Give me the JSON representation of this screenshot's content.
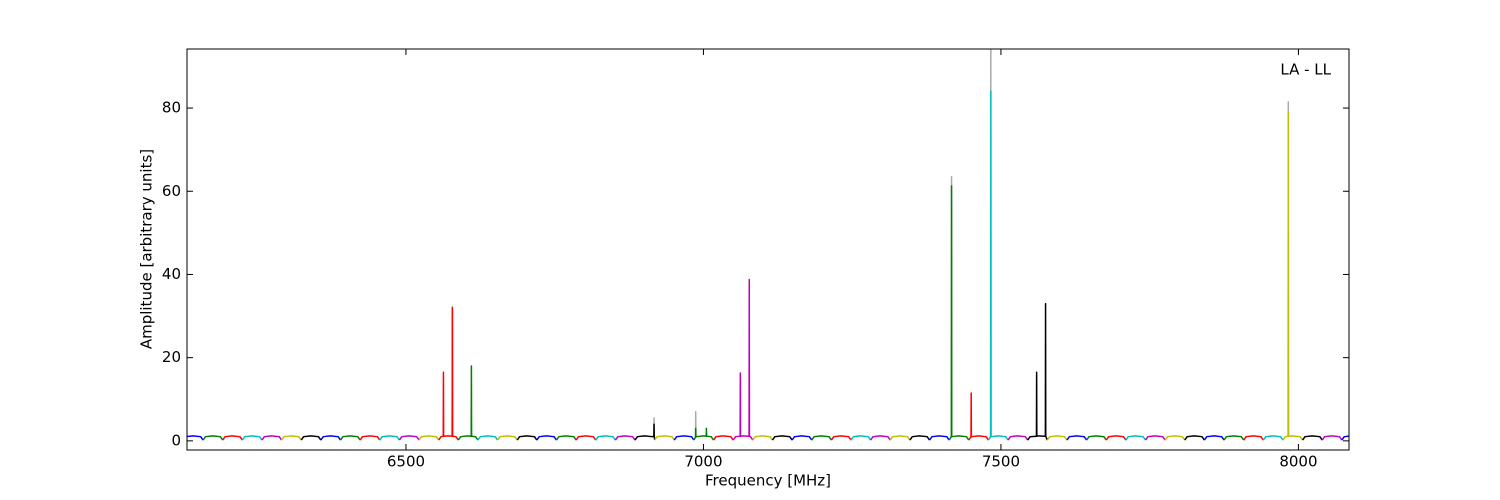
{
  "chart_data": {
    "type": "line",
    "annotation": "LA - LL",
    "x_label": "Frequency [MHz]",
    "y_label": "Amplitude [arbitrary units]",
    "xlim": [
      6132,
      8085
    ],
    "xticks": [
      6500,
      7000,
      7500,
      8000
    ],
    "ylim": [
      -2.2,
      94.2
    ],
    "yticks": [
      0,
      20,
      40,
      60,
      80
    ],
    "series": [
      {
        "color": "#aaaaaa",
        "x": [
          6577.7,
          6578,
          6578.3,
          null,
          6916.7,
          6917,
          6917.3,
          null,
          6986.7,
          6987,
          6987.3,
          null,
          7416.7,
          7417,
          7417.3,
          null,
          7482.7,
          7483,
          7483.3,
          null,
          7982.7,
          7983,
          7983.3
        ],
        "values": [
          1,
          32.3,
          1,
          null,
          1,
          5.5,
          1,
          null,
          1,
          7,
          1,
          null,
          1,
          63.5,
          1,
          null,
          1,
          95,
          1,
          null,
          1,
          81.5,
          1
        ]
      },
      {
        "color": "#0000ff",
        "x": [
          6126,
          6130,
          6142,
          6155,
          6159
        ],
        "values": [
          0.2,
          1,
          1.2,
          1,
          0.2
        ]
      },
      {
        "color": "#008000",
        "x": [
          6159,
          6163,
          6175,
          6188,
          6192
        ],
        "values": [
          0.2,
          1,
          1.2,
          1,
          0.2
        ]
      },
      {
        "color": "#ff0000",
        "x": [
          6192,
          6196,
          6208,
          6221,
          6225
        ],
        "values": [
          0.2,
          1,
          1.2,
          1,
          0.2
        ]
      },
      {
        "color": "#00bfbf",
        "x": [
          6225,
          6229,
          6241,
          6254,
          6258
        ],
        "values": [
          0.2,
          1,
          1.2,
          1,
          0.2
        ]
      },
      {
        "color": "#bf00bf",
        "x": [
          6258,
          6262,
          6274,
          6287,
          6291
        ],
        "values": [
          0.2,
          1,
          1.2,
          1,
          0.2
        ]
      },
      {
        "color": "#bfbf00",
        "x": [
          6291,
          6295,
          6307,
          6320,
          6324
        ],
        "values": [
          0.2,
          1,
          1.2,
          1,
          0.2
        ]
      },
      {
        "color": "#000000",
        "x": [
          6324,
          6328,
          6340,
          6353,
          6357
        ],
        "values": [
          0.2,
          1,
          1.2,
          1,
          0.2
        ]
      },
      {
        "color": "#0000ff",
        "x": [
          6357,
          6361,
          6373,
          6386,
          6390
        ],
        "values": [
          0.2,
          1,
          1.2,
          1,
          0.2
        ]
      },
      {
        "color": "#008000",
        "x": [
          6390,
          6394,
          6406,
          6419,
          6423
        ],
        "values": [
          0.2,
          1,
          1.2,
          1,
          0.2
        ]
      },
      {
        "color": "#ff0000",
        "x": [
          6423,
          6427,
          6439,
          6452,
          6456
        ],
        "values": [
          0.2,
          1,
          1.2,
          1,
          0.2
        ]
      },
      {
        "color": "#00bfbf",
        "x": [
          6456,
          6460,
          6472,
          6485,
          6489
        ],
        "values": [
          0.2,
          1,
          1.2,
          1,
          0.2
        ]
      },
      {
        "color": "#bf00bf",
        "x": [
          6489,
          6493,
          6505,
          6518,
          6522
        ],
        "values": [
          0.2,
          1,
          1.2,
          1,
          0.2
        ]
      },
      {
        "color": "#bfbf00",
        "x": [
          6522,
          6526,
          6538,
          6551,
          6555
        ],
        "values": [
          0.2,
          1,
          1.2,
          1,
          0.2
        ]
      },
      {
        "color": "#ff0000",
        "x": [
          6555,
          6559,
          6562.7,
          6563,
          6563.3,
          6571,
          6577.7,
          6578,
          6578.3,
          6584,
          6588
        ],
        "values": [
          0.2,
          1,
          1.1,
          16.5,
          1.1,
          1.2,
          1.1,
          32,
          1.1,
          1,
          0.2
        ]
      },
      {
        "color": "#008000",
        "x": [
          6588,
          6592,
          6604,
          6609.7,
          6610,
          6610.3,
          6617,
          6621
        ],
        "values": [
          0.2,
          1,
          1.2,
          1.1,
          18,
          1.1,
          1,
          0.2
        ]
      },
      {
        "color": "#00bfbf",
        "x": [
          6621,
          6625,
          6637,
          6650,
          6654
        ],
        "values": [
          0.2,
          1,
          1.2,
          1,
          0.2
        ]
      },
      {
        "color": "#bfbf00",
        "x": [
          6654,
          6658,
          6670,
          6683,
          6687
        ],
        "values": [
          0.2,
          1,
          1.2,
          1,
          0.2
        ]
      },
      {
        "color": "#000000",
        "x": [
          6687,
          6691,
          6703,
          6716,
          6720
        ],
        "values": [
          0.2,
          1,
          1.2,
          1,
          0.2
        ]
      },
      {
        "color": "#0000ff",
        "x": [
          6720,
          6724,
          6736,
          6749,
          6753
        ],
        "values": [
          0.2,
          1,
          1.2,
          1,
          0.2
        ]
      },
      {
        "color": "#008000",
        "x": [
          6753,
          6757,
          6769,
          6782,
          6786
        ],
        "values": [
          0.2,
          1,
          1.2,
          1,
          0.2
        ]
      },
      {
        "color": "#ff0000",
        "x": [
          6786,
          6790,
          6802,
          6815,
          6819
        ],
        "values": [
          0.2,
          1,
          1.2,
          1,
          0.2
        ]
      },
      {
        "color": "#00bfbf",
        "x": [
          6819,
          6823,
          6835,
          6848,
          6852
        ],
        "values": [
          0.2,
          1,
          1.2,
          1,
          0.2
        ]
      },
      {
        "color": "#bf00bf",
        "x": [
          6852,
          6856,
          6868,
          6881,
          6885
        ],
        "values": [
          0.2,
          1,
          1.2,
          1,
          0.2
        ]
      },
      {
        "color": "#000000",
        "x": [
          6885,
          6889,
          6901,
          6914,
          6916.7,
          6917,
          6917.3,
          6918
        ],
        "values": [
          0.2,
          1,
          1.2,
          1,
          1.1,
          4,
          1.1,
          0.2
        ]
      },
      {
        "color": "#bfbf00",
        "x": [
          6918,
          6922,
          6934,
          6947,
          6951
        ],
        "values": [
          0.2,
          1,
          1.2,
          1,
          0.2
        ]
      },
      {
        "color": "#0000ff",
        "x": [
          6951,
          6955,
          6967,
          6980,
          6984
        ],
        "values": [
          0.2,
          1,
          1.2,
          1,
          0.2
        ]
      },
      {
        "color": "#008000",
        "x": [
          6984,
          6986.7,
          6987,
          6987.3,
          6988,
          7000,
          7004.7,
          7005,
          7005.3,
          7013,
          7017
        ],
        "values": [
          0.2,
          0.9,
          3,
          0.9,
          1,
          1.2,
          1.1,
          3,
          1.1,
          1,
          0.2
        ]
      },
      {
        "color": "#ff0000",
        "x": [
          7017,
          7021,
          7033,
          7046,
          7050
        ],
        "values": [
          0.2,
          1,
          1.2,
          1,
          0.2
        ]
      },
      {
        "color": "#bf00bf",
        "x": [
          7050,
          7054,
          7061.7,
          7062,
          7062.3,
          7066,
          7076.7,
          7077,
          7077.3,
          7079,
          7083
        ],
        "values": [
          0.2,
          1,
          1.1,
          16.3,
          1.1,
          1.2,
          1.1,
          38.8,
          1.1,
          1,
          0.2
        ]
      },
      {
        "color": "#bfbf00",
        "x": [
          7083,
          7087,
          7099,
          7112,
          7116
        ],
        "values": [
          0.2,
          1,
          1.2,
          1,
          0.2
        ]
      },
      {
        "color": "#000000",
        "x": [
          7116,
          7120,
          7132,
          7145,
          7149
        ],
        "values": [
          0.2,
          1,
          1.2,
          1,
          0.2
        ]
      },
      {
        "color": "#0000ff",
        "x": [
          7149,
          7153,
          7165,
          7178,
          7182
        ],
        "values": [
          0.2,
          1,
          1.2,
          1,
          0.2
        ]
      },
      {
        "color": "#008000",
        "x": [
          7182,
          7186,
          7198,
          7211,
          7215
        ],
        "values": [
          0.2,
          1,
          1.2,
          1,
          0.2
        ]
      },
      {
        "color": "#ff0000",
        "x": [
          7215,
          7219,
          7231,
          7244,
          7248
        ],
        "values": [
          0.2,
          1,
          1.2,
          1,
          0.2
        ]
      },
      {
        "color": "#00bfbf",
        "x": [
          7248,
          7252,
          7264,
          7277,
          7281
        ],
        "values": [
          0.2,
          1,
          1.2,
          1,
          0.2
        ]
      },
      {
        "color": "#bf00bf",
        "x": [
          7281,
          7285,
          7297,
          7310,
          7314
        ],
        "values": [
          0.2,
          1,
          1.2,
          1,
          0.2
        ]
      },
      {
        "color": "#bfbf00",
        "x": [
          7314,
          7318,
          7330,
          7343,
          7347
        ],
        "values": [
          0.2,
          1,
          1.2,
          1,
          0.2
        ]
      },
      {
        "color": "#000000",
        "x": [
          7347,
          7351,
          7363,
          7376,
          7380
        ],
        "values": [
          0.2,
          1,
          1.2,
          1,
          0.2
        ]
      },
      {
        "color": "#0000ff",
        "x": [
          7380,
          7384,
          7396,
          7409,
          7413
        ],
        "values": [
          0.2,
          1,
          1.2,
          1,
          0.2
        ]
      },
      {
        "color": "#008000",
        "x": [
          7413,
          7416.7,
          7417,
          7417.3,
          7429,
          7442,
          7446
        ],
        "values": [
          0.2,
          1,
          61.3,
          1,
          1.2,
          1,
          0.2
        ]
      },
      {
        "color": "#ff0000",
        "x": [
          7446,
          7449.7,
          7450,
          7450.3,
          7462,
          7475,
          7479
        ],
        "values": [
          0.2,
          1,
          11.5,
          1,
          1.2,
          1,
          0.2
        ]
      },
      {
        "color": "#00bfbf",
        "x": [
          7479,
          7482.7,
          7483,
          7483.3,
          7495,
          7508,
          7512
        ],
        "values": [
          0.2,
          1,
          84,
          1,
          1.2,
          1,
          0.2
        ]
      },
      {
        "color": "#bf00bf",
        "x": [
          7512,
          7516,
          7528,
          7541,
          7545
        ],
        "values": [
          0.2,
          1,
          1.2,
          1,
          0.2
        ]
      },
      {
        "color": "#000000",
        "x": [
          7545,
          7549,
          7559.7,
          7560,
          7560.3,
          7561,
          7574.7,
          7575,
          7575.3,
          7578
        ],
        "values": [
          0.2,
          1,
          1.1,
          16.5,
          1.1,
          1.2,
          1.1,
          33,
          1.1,
          0.2
        ]
      },
      {
        "color": "#bfbf00",
        "x": [
          7578,
          7582,
          7594,
          7607,
          7611
        ],
        "values": [
          0.2,
          1,
          1.2,
          1,
          0.2
        ]
      },
      {
        "color": "#0000ff",
        "x": [
          7611,
          7615,
          7627,
          7640,
          7644
        ],
        "values": [
          0.2,
          1,
          1.2,
          1,
          0.2
        ]
      },
      {
        "color": "#008000",
        "x": [
          7644,
          7648,
          7660,
          7673,
          7677
        ],
        "values": [
          0.2,
          1,
          1.2,
          1,
          0.2
        ]
      },
      {
        "color": "#ff0000",
        "x": [
          7677,
          7681,
          7693,
          7706,
          7710
        ],
        "values": [
          0.2,
          1,
          1.2,
          1,
          0.2
        ]
      },
      {
        "color": "#00bfbf",
        "x": [
          7710,
          7714,
          7726,
          7739,
          7743
        ],
        "values": [
          0.2,
          1,
          1.2,
          1,
          0.2
        ]
      },
      {
        "color": "#bf00bf",
        "x": [
          7743,
          7747,
          7759,
          7772,
          7776
        ],
        "values": [
          0.2,
          1,
          1.2,
          1,
          0.2
        ]
      },
      {
        "color": "#bfbf00",
        "x": [
          7776,
          7780,
          7792,
          7805,
          7809
        ],
        "values": [
          0.2,
          1,
          1.2,
          1,
          0.2
        ]
      },
      {
        "color": "#000000",
        "x": [
          7809,
          7813,
          7825,
          7838,
          7842
        ],
        "values": [
          0.2,
          1,
          1.2,
          1,
          0.2
        ]
      },
      {
        "color": "#0000ff",
        "x": [
          7842,
          7846,
          7858,
          7871,
          7875
        ],
        "values": [
          0.2,
          1,
          1.2,
          1,
          0.2
        ]
      },
      {
        "color": "#008000",
        "x": [
          7875,
          7879,
          7891,
          7904,
          7908
        ],
        "values": [
          0.2,
          1,
          1.2,
          1,
          0.2
        ]
      },
      {
        "color": "#ff0000",
        "x": [
          7908,
          7912,
          7924,
          7937,
          7941
        ],
        "values": [
          0.2,
          1,
          1.2,
          1,
          0.2
        ]
      },
      {
        "color": "#00bfbf",
        "x": [
          7941,
          7945,
          7957,
          7970,
          7974
        ],
        "values": [
          0.2,
          1,
          1.2,
          1,
          0.2
        ]
      },
      {
        "color": "#bfbf00",
        "x": [
          7974,
          7978,
          7982.7,
          7983,
          7983.3,
          7990,
          8003,
          8007
        ],
        "values": [
          0.2,
          1,
          1.1,
          79,
          1.1,
          1.2,
          1,
          0.2
        ]
      },
      {
        "color": "#000000",
        "x": [
          8007,
          8011,
          8023,
          8036,
          8040
        ],
        "values": [
          0.2,
          1,
          1.2,
          1,
          0.2
        ]
      },
      {
        "color": "#bf00bf",
        "x": [
          8040,
          8044,
          8056,
          8069,
          8073
        ],
        "values": [
          0.2,
          1,
          1.2,
          1,
          0.2
        ]
      },
      {
        "color": "#0000ff",
        "x": [
          8073,
          8077,
          8089,
          8102,
          8106
        ],
        "values": [
          0.2,
          1,
          1.2,
          1,
          0.2
        ]
      }
    ]
  }
}
